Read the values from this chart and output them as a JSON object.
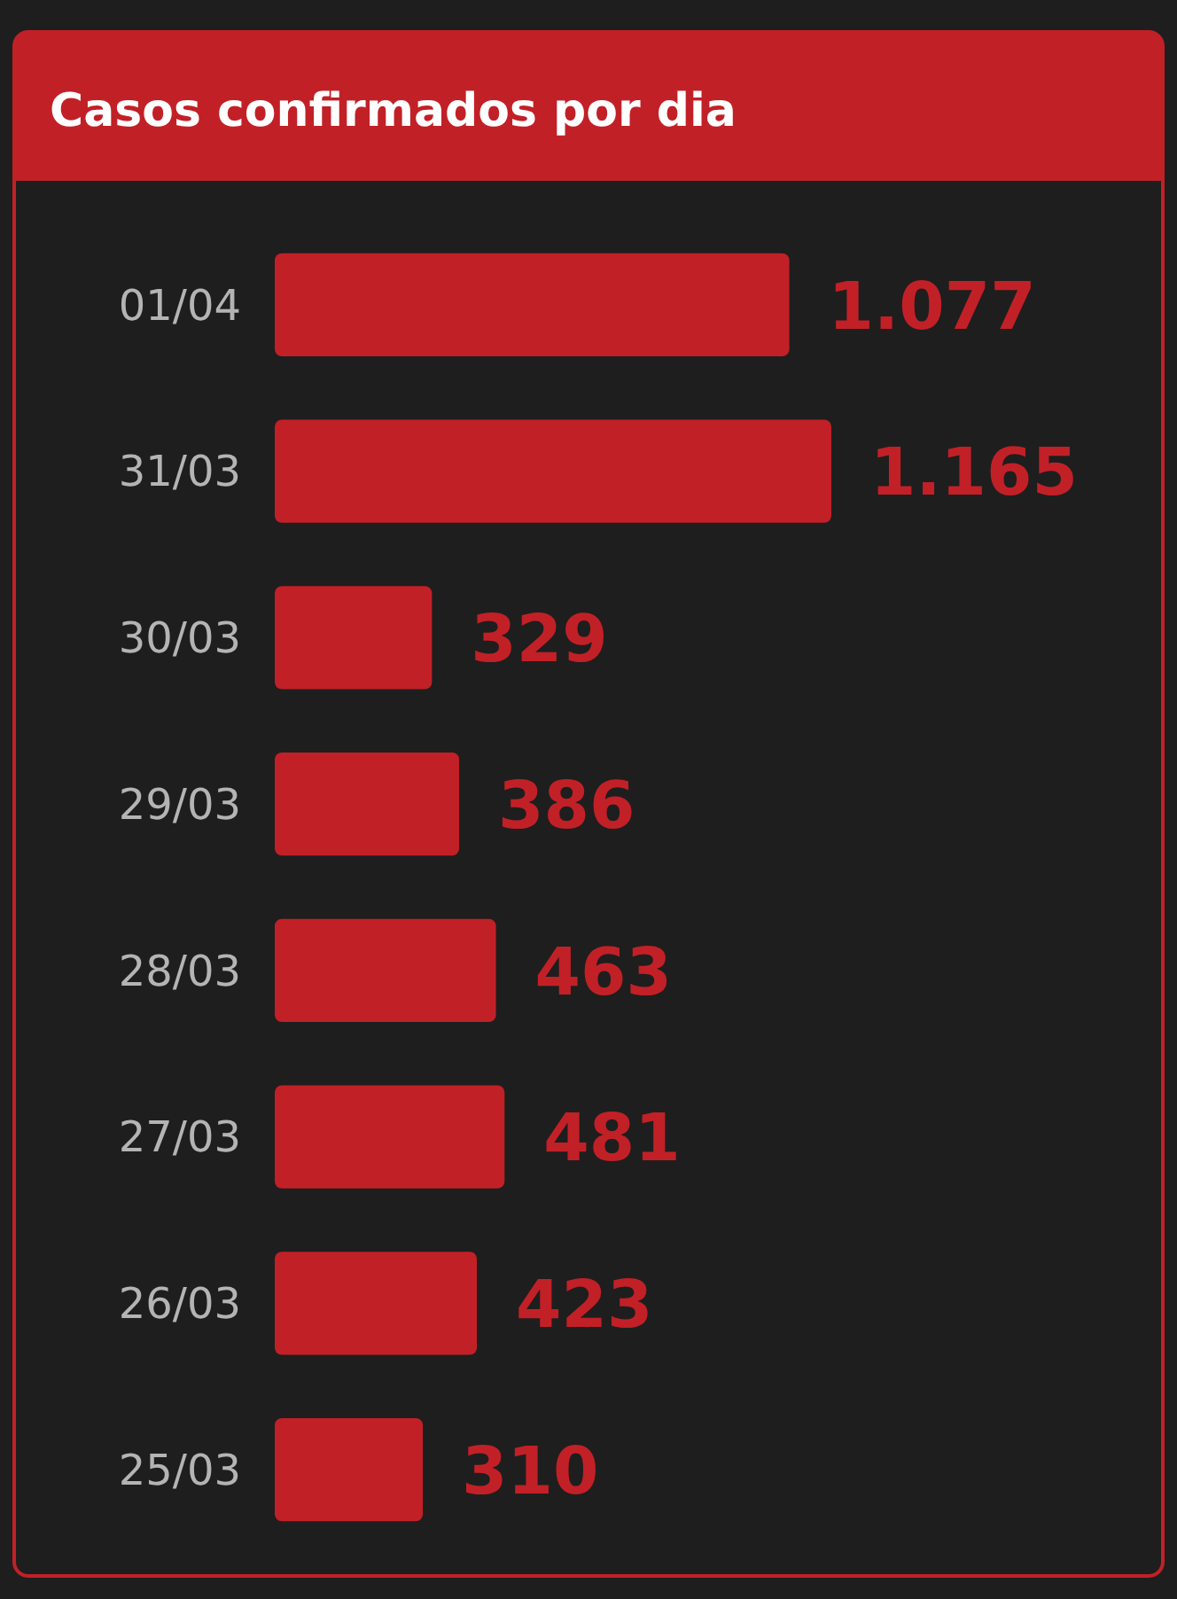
{
  "chart_data": {
    "type": "bar",
    "orientation": "horizontal",
    "title": "Casos confirmados por dia",
    "categories": [
      "01/04",
      "31/03",
      "30/03",
      "29/03",
      "28/03",
      "27/03",
      "26/03",
      "25/03"
    ],
    "values": [
      1077,
      1165,
      329,
      386,
      463,
      481,
      423,
      310
    ],
    "value_labels": [
      "1.077",
      "1.165",
      "329",
      "386",
      "463",
      "481",
      "423",
      "310"
    ],
    "color": "#c22027"
  }
}
